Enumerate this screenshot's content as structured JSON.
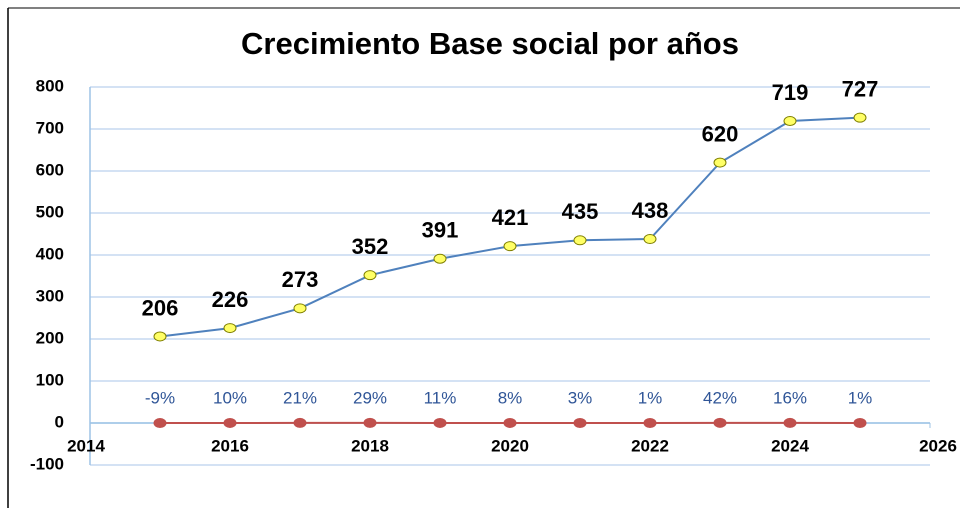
{
  "chart_data": {
    "type": "line",
    "title": "Crecimiento Base social por años",
    "x": [
      2015,
      2016,
      2017,
      2018,
      2019,
      2020,
      2021,
      2022,
      2023,
      2024,
      2025
    ],
    "series": [
      {
        "color": "#4f81bd",
        "marker_color": "#ffff66",
        "values": [
          206,
          226,
          273,
          352,
          391,
          421,
          435,
          438,
          620,
          719,
          727
        ]
      },
      {
        "color": "#c0504d",
        "marker_color": "#c0504d",
        "values": [
          -0.09,
          0.1,
          0.21,
          0.29,
          0.11,
          0.08,
          0.03,
          0.01,
          0.42,
          0.16,
          0.01
        ],
        "value_labels": [
          "-9%",
          "10%",
          "21%",
          "29%",
          "11%",
          "8%",
          "3%",
          "1%",
          "42%",
          "16%",
          "1%"
        ]
      }
    ],
    "xlim": [
      2014,
      2026
    ],
    "xticks": [
      2014,
      2016,
      2018,
      2020,
      2022,
      2024,
      2026
    ],
    "ylim": [
      -100,
      800
    ],
    "yticks": [
      -100,
      0,
      100,
      200,
      300,
      400,
      500,
      600,
      700,
      800
    ],
    "grid": true
  }
}
